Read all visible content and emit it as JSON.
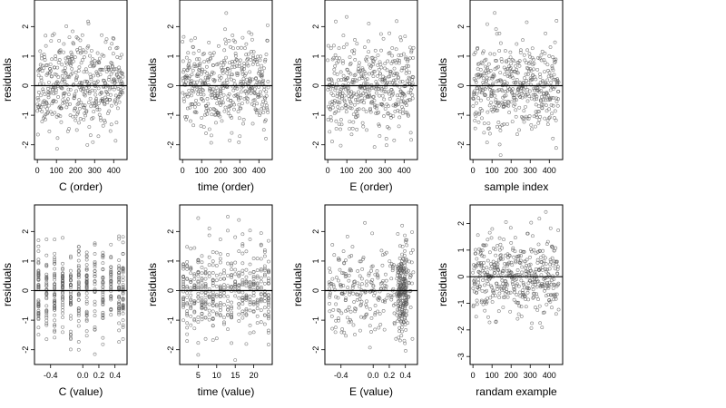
{
  "chart_data": [
    {
      "type": "scatter",
      "xlabel": "C (order)",
      "ylabel": "residuals",
      "xlim": [
        -15,
        470
      ],
      "ylim": [
        -2.5,
        2.9
      ],
      "xticks": [
        0,
        100,
        200,
        300,
        400
      ],
      "yticks": [
        -2,
        -1,
        0,
        1,
        2
      ],
      "hline": 0,
      "seed": 11,
      "n": 450,
      "xmode": "order"
    },
    {
      "type": "scatter",
      "xlabel": "time (order)",
      "ylabel": "residuals",
      "xlim": [
        -15,
        470
      ],
      "ylim": [
        -2.5,
        2.9
      ],
      "xticks": [
        0,
        100,
        200,
        300,
        400
      ],
      "yticks": [
        -2,
        -1,
        0,
        1,
        2
      ],
      "hline": 0,
      "seed": 23,
      "n": 450,
      "xmode": "order"
    },
    {
      "type": "scatter",
      "xlabel": "E (order)",
      "ylabel": "residuals",
      "xlim": [
        -15,
        470
      ],
      "ylim": [
        -2.5,
        2.9
      ],
      "xticks": [
        0,
        100,
        200,
        300,
        400
      ],
      "yticks": [
        -2,
        -1,
        0,
        1,
        2
      ],
      "hline": 0,
      "seed": 37,
      "n": 450,
      "xmode": "order"
    },
    {
      "type": "scatter",
      "xlabel": "sample index",
      "ylabel": "residuals",
      "xlim": [
        -15,
        470
      ],
      "ylim": [
        -2.5,
        2.9
      ],
      "xticks": [
        0,
        100,
        200,
        300,
        400
      ],
      "yticks": [
        -2,
        -1,
        0,
        1,
        2
      ],
      "hline": 0,
      "seed": 41,
      "n": 450,
      "xmode": "order"
    },
    {
      "type": "scatter",
      "xlabel": "C (value)",
      "ylabel": "residuals",
      "xlim": [
        -0.6,
        0.55
      ],
      "ylim": [
        -2.5,
        2.9
      ],
      "xticks": [
        -0.4,
        0.0,
        0.2,
        0.4
      ],
      "xticklabels": [
        "-0.4",
        "0.0",
        "0.2",
        "0.4"
      ],
      "yticks": [
        -2,
        -1,
        0,
        1,
        2
      ],
      "hline": 0,
      "seed": 53,
      "n": 450,
      "xmode": "levels",
      "levels": [
        -0.55,
        -0.45,
        -0.35,
        -0.25,
        -0.15,
        -0.05,
        0.05,
        0.15,
        0.25,
        0.35,
        0.45,
        0.5
      ]
    },
    {
      "type": "scatter",
      "xlabel": "time (value)",
      "ylabel": "residuals",
      "xlim": [
        0,
        25
      ],
      "ylim": [
        -2.5,
        2.9
      ],
      "xticks": [
        5,
        10,
        15,
        20
      ],
      "xticklabels": [
        "5",
        "10",
        "15",
        "20"
      ],
      "yticks": [
        -2,
        -1,
        0,
        1,
        2
      ],
      "hline": 0,
      "seed": 67,
      "n": 450,
      "xmode": "levels",
      "levels": [
        1,
        2,
        3,
        4,
        5,
        6,
        7,
        8,
        9,
        10,
        11,
        12,
        13,
        14,
        15,
        16,
        17,
        18,
        19,
        20,
        21,
        22,
        23,
        24
      ]
    },
    {
      "type": "scatter",
      "xlabel": "E (value)",
      "ylabel": "residuals",
      "xlim": [
        -0.6,
        0.55
      ],
      "ylim": [
        -2.5,
        2.9
      ],
      "xticks": [
        -0.4,
        0.0,
        0.2,
        0.4
      ],
      "xticklabels": [
        "-0.4",
        "0.0",
        "0.2",
        "0.4"
      ],
      "yticks": [
        -2,
        -1,
        0,
        1,
        2
      ],
      "hline": 0,
      "seed": 79,
      "n": 450,
      "xmode": "continuous"
    },
    {
      "type": "scatter",
      "xlabel": "randam example",
      "ylabel": "residuals",
      "xlim": [
        -15,
        470
      ],
      "ylim": [
        -3.3,
        2.7
      ],
      "xticks": [
        0,
        100,
        200,
        300,
        400
      ],
      "yticks": [
        -3,
        -2,
        -1,
        0,
        1,
        2
      ],
      "hline": 0,
      "seed": 97,
      "n": 450,
      "xmode": "order"
    }
  ]
}
